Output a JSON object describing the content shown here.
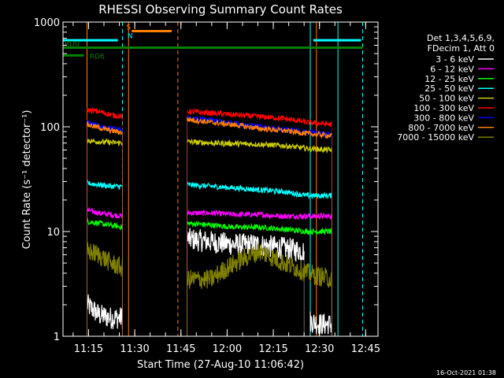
{
  "chart_data": {
    "type": "line",
    "title": "RHESSI Observing Summary Count Rates",
    "xlabel": "Start Time (27-Aug-10 11:06:42)",
    "ylabel": "Count Rate (s⁻¹ detector⁻¹)",
    "y_scale": "log",
    "ylim": [
      1,
      1000
    ],
    "xlim": [
      "11:06:42",
      "12:49:00"
    ],
    "x_ticks": [
      "11:15",
      "11:30",
      "11:45",
      "12:00",
      "12:15",
      "12:30",
      "12:45"
    ],
    "y_ticks": [
      "1",
      "10",
      "100",
      "1000"
    ],
    "legend": {
      "header": [
        "Det 1,3,4,5,6,9,",
        "FDecim 1, Att 0"
      ],
      "position": "right"
    },
    "series": [
      {
        "name": "3 - 6 keV",
        "color": "#ffffff",
        "segments": [
          {
            "start": "11:14:30",
            "end": "11:26:00",
            "values": [
              2.0,
              1.6,
              1.5,
              1.5
            ]
          },
          {
            "start": "11:47:00",
            "end": "12:25:00",
            "values": [
              8.5,
              8.0,
              7.5,
              7.5,
              7.0,
              6.5
            ]
          },
          {
            "start": "12:27:00",
            "end": "12:34:00",
            "values": [
              1.4,
              1.3,
              1.3
            ]
          }
        ]
      },
      {
        "name": "6 - 12 keV",
        "color": "#ff00ff",
        "segments": [
          {
            "start": "11:14:30",
            "end": "11:26:00",
            "values": [
              16,
              15,
              14.5,
              14
            ]
          },
          {
            "start": "11:47:00",
            "end": "12:34:00",
            "values": [
              15,
              15,
              14.5,
              14.5,
              14,
              14,
              14
            ]
          }
        ]
      },
      {
        "name": "12 - 25 keV",
        "color": "#00ff00",
        "segments": [
          {
            "start": "11:14:30",
            "end": "11:26:00",
            "values": [
              12.5,
              12,
              11.5,
              11
            ]
          },
          {
            "start": "11:47:00",
            "end": "12:34:00",
            "values": [
              12,
              11.5,
              11,
              11,
              10.5,
              10,
              10
            ]
          }
        ]
      },
      {
        "name": "25 - 50 keV",
        "color": "#00ffff",
        "segments": [
          {
            "start": "11:14:30",
            "end": "11:26:00",
            "values": [
              29,
              28,
              27,
              27
            ]
          },
          {
            "start": "11:47:00",
            "end": "12:34:00",
            "values": [
              28,
              27,
              26,
              25,
              24,
              22,
              22
            ]
          }
        ]
      },
      {
        "name": "50 - 100 keV",
        "color": "#cccc00",
        "segments": [
          {
            "start": "11:14:30",
            "end": "11:26:00",
            "values": [
              74,
              72,
              71,
              70
            ]
          },
          {
            "start": "11:47:00",
            "end": "12:34:00",
            "values": [
              72,
              70,
              69,
              68,
              66,
              62,
              60
            ]
          }
        ]
      },
      {
        "name": "100 - 300 keV",
        "color": "#ff0000",
        "segments": [
          {
            "start": "11:14:30",
            "end": "11:26:00",
            "values": [
              145,
              140,
              130,
              125
            ]
          },
          {
            "start": "11:47:00",
            "end": "12:34:00",
            "values": [
              140,
              135,
              130,
              125,
              120,
              110,
              105
            ]
          }
        ]
      },
      {
        "name": "300 - 800 keV",
        "color": "#0000ff",
        "segments": [
          {
            "start": "11:14:30",
            "end": "11:26:00",
            "values": [
              110,
              102,
              96,
              92
            ]
          },
          {
            "start": "11:47:00",
            "end": "12:34:00",
            "values": [
              120,
              115,
              108,
              100,
              95,
              88,
              85
            ]
          }
        ]
      },
      {
        "name": "800 - 7000 keV",
        "color": "#ff8000",
        "segments": [
          {
            "start": "11:14:30",
            "end": "11:26:00",
            "values": [
              105,
              98,
              92,
              88
            ]
          },
          {
            "start": "11:47:00",
            "end": "12:34:00",
            "values": [
              118,
              110,
              104,
              96,
              92,
              86,
              82
            ]
          }
        ]
      },
      {
        "name": "7000 - 15000 keV",
        "color": "#808000",
        "segments": [
          {
            "start": "11:14:30",
            "end": "11:26:00",
            "values": [
              6.5,
              6.0,
              5.0,
              4.5
            ]
          },
          {
            "start": "11:47:00",
            "end": "12:34:00",
            "values": [
              3.5,
              3.5,
              5.0,
              6.5,
              5.0,
              4.0,
              3.5
            ]
          }
        ]
      }
    ],
    "flag_bars": [
      {
        "label": "",
        "color": "#00ffff",
        "value": 670,
        "start": "11:06:42",
        "end": "11:24:30"
      },
      {
        "label": "",
        "color": "#00ffff",
        "value": 670,
        "start": "12:28:00",
        "end": "12:43:30"
      },
      {
        "label": "",
        "color": "#ff8000",
        "value": 820,
        "start": "11:29:00",
        "end": "11:42:00"
      },
      {
        "label": "RD0",
        "color": "#008000",
        "value": 570,
        "start": "11:06:42",
        "end": "12:44:00"
      },
      {
        "label": "RD6",
        "color": "#008000",
        "value": 480,
        "start": "11:06:42",
        "end": "11:13:30"
      }
    ],
    "flag_markers": [
      {
        "text": "S",
        "color": "#ff8000",
        "time": "11:28:00",
        "value": 850
      },
      {
        "text": "N",
        "color": "#00ffff",
        "time": "11:28:30",
        "value": 700
      }
    ],
    "vlines": [
      {
        "time": "11:14:30",
        "color": "#ff8000",
        "style": "solid"
      },
      {
        "time": "11:26:00",
        "color": "#00ffff",
        "style": "dashed"
      },
      {
        "time": "11:28:00",
        "color": "#ff8000",
        "style": "solid"
      },
      {
        "time": "11:44:00",
        "color": "#ff8000",
        "style": "dashed"
      },
      {
        "time": "12:27:00",
        "color": "#00ffff",
        "style": "solid"
      },
      {
        "time": "12:36:00",
        "color": "#00ffff",
        "style": "solid"
      },
      {
        "time": "12:44:00",
        "color": "#00ffff",
        "style": "dashed"
      },
      {
        "time": "12:29:00",
        "color": "#ff8000",
        "style": "solid"
      }
    ]
  },
  "footer": {
    "timestamp": "16-Oct-2021 01:38"
  }
}
